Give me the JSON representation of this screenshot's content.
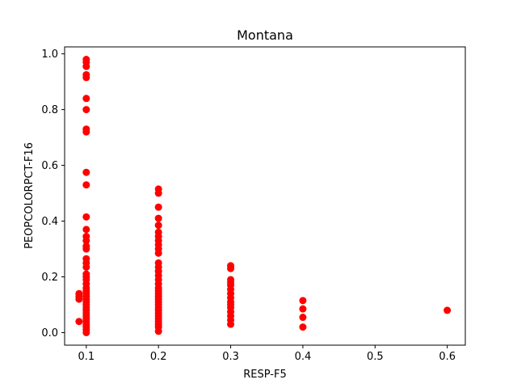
{
  "chart_data": {
    "type": "scatter",
    "title": "Montana",
    "xlabel": "RESP-F5",
    "ylabel": "PEOPCOLORPCT-F16",
    "xlim": [
      0.07,
      0.625
    ],
    "ylim": [
      -0.045,
      1.025
    ],
    "xticks": [
      0.1,
      0.2,
      0.3,
      0.4,
      0.5,
      0.6
    ],
    "xtick_labels": [
      "0.1",
      "0.2",
      "0.3",
      "0.4",
      "0.5",
      "0.6"
    ],
    "yticks": [
      0.0,
      0.2,
      0.4,
      0.6,
      0.8,
      1.0
    ],
    "ytick_labels": [
      "0.0",
      "0.2",
      "0.4",
      "0.6",
      "0.8",
      "1.0"
    ],
    "grid": false,
    "marker_color": "#ff0000",
    "points": [
      {
        "x": 0.09,
        "y": 0.04
      },
      {
        "x": 0.09,
        "y": 0.12
      },
      {
        "x": 0.09,
        "y": 0.13
      },
      {
        "x": 0.09,
        "y": 0.14
      },
      {
        "x": 0.1,
        "y": 0.98
      },
      {
        "x": 0.1,
        "y": 0.97
      },
      {
        "x": 0.1,
        "y": 0.955
      },
      {
        "x": 0.1,
        "y": 0.925
      },
      {
        "x": 0.1,
        "y": 0.915
      },
      {
        "x": 0.1,
        "y": 0.84
      },
      {
        "x": 0.1,
        "y": 0.8
      },
      {
        "x": 0.1,
        "y": 0.73
      },
      {
        "x": 0.1,
        "y": 0.72
      },
      {
        "x": 0.1,
        "y": 0.575
      },
      {
        "x": 0.1,
        "y": 0.53
      },
      {
        "x": 0.1,
        "y": 0.415
      },
      {
        "x": 0.1,
        "y": 0.37
      },
      {
        "x": 0.1,
        "y": 0.345
      },
      {
        "x": 0.1,
        "y": 0.33
      },
      {
        "x": 0.1,
        "y": 0.31
      },
      {
        "x": 0.1,
        "y": 0.3
      },
      {
        "x": 0.1,
        "y": 0.265
      },
      {
        "x": 0.1,
        "y": 0.25
      },
      {
        "x": 0.1,
        "y": 0.235
      },
      {
        "x": 0.1,
        "y": 0.21
      },
      {
        "x": 0.1,
        "y": 0.2
      },
      {
        "x": 0.1,
        "y": 0.19
      },
      {
        "x": 0.1,
        "y": 0.175
      },
      {
        "x": 0.1,
        "y": 0.16
      },
      {
        "x": 0.1,
        "y": 0.15
      },
      {
        "x": 0.1,
        "y": 0.14
      },
      {
        "x": 0.1,
        "y": 0.13
      },
      {
        "x": 0.1,
        "y": 0.12
      },
      {
        "x": 0.1,
        "y": 0.11
      },
      {
        "x": 0.1,
        "y": 0.1
      },
      {
        "x": 0.1,
        "y": 0.09
      },
      {
        "x": 0.1,
        "y": 0.08
      },
      {
        "x": 0.1,
        "y": 0.07
      },
      {
        "x": 0.1,
        "y": 0.06
      },
      {
        "x": 0.1,
        "y": 0.05
      },
      {
        "x": 0.1,
        "y": 0.04
      },
      {
        "x": 0.1,
        "y": 0.03
      },
      {
        "x": 0.1,
        "y": 0.02
      },
      {
        "x": 0.1,
        "y": 0.01
      },
      {
        "x": 0.1,
        "y": 0.0
      },
      {
        "x": 0.2,
        "y": 0.515
      },
      {
        "x": 0.2,
        "y": 0.5
      },
      {
        "x": 0.2,
        "y": 0.45
      },
      {
        "x": 0.2,
        "y": 0.41
      },
      {
        "x": 0.2,
        "y": 0.385
      },
      {
        "x": 0.2,
        "y": 0.36
      },
      {
        "x": 0.2,
        "y": 0.345
      },
      {
        "x": 0.2,
        "y": 0.33
      },
      {
        "x": 0.2,
        "y": 0.315
      },
      {
        "x": 0.2,
        "y": 0.3
      },
      {
        "x": 0.2,
        "y": 0.285
      },
      {
        "x": 0.2,
        "y": 0.25
      },
      {
        "x": 0.2,
        "y": 0.235
      },
      {
        "x": 0.2,
        "y": 0.22
      },
      {
        "x": 0.2,
        "y": 0.205
      },
      {
        "x": 0.2,
        "y": 0.19
      },
      {
        "x": 0.2,
        "y": 0.175
      },
      {
        "x": 0.2,
        "y": 0.16
      },
      {
        "x": 0.2,
        "y": 0.15
      },
      {
        "x": 0.2,
        "y": 0.14
      },
      {
        "x": 0.2,
        "y": 0.13
      },
      {
        "x": 0.2,
        "y": 0.12
      },
      {
        "x": 0.2,
        "y": 0.11
      },
      {
        "x": 0.2,
        "y": 0.1
      },
      {
        "x": 0.2,
        "y": 0.09
      },
      {
        "x": 0.2,
        "y": 0.08
      },
      {
        "x": 0.2,
        "y": 0.07
      },
      {
        "x": 0.2,
        "y": 0.06
      },
      {
        "x": 0.2,
        "y": 0.05
      },
      {
        "x": 0.2,
        "y": 0.04
      },
      {
        "x": 0.2,
        "y": 0.03
      },
      {
        "x": 0.2,
        "y": 0.02
      },
      {
        "x": 0.2,
        "y": 0.005
      },
      {
        "x": 0.3,
        "y": 0.24
      },
      {
        "x": 0.3,
        "y": 0.23
      },
      {
        "x": 0.3,
        "y": 0.19
      },
      {
        "x": 0.3,
        "y": 0.18
      },
      {
        "x": 0.3,
        "y": 0.17
      },
      {
        "x": 0.3,
        "y": 0.155
      },
      {
        "x": 0.3,
        "y": 0.14
      },
      {
        "x": 0.3,
        "y": 0.125
      },
      {
        "x": 0.3,
        "y": 0.11
      },
      {
        "x": 0.3,
        "y": 0.1
      },
      {
        "x": 0.3,
        "y": 0.09
      },
      {
        "x": 0.3,
        "y": 0.075
      },
      {
        "x": 0.3,
        "y": 0.06
      },
      {
        "x": 0.3,
        "y": 0.045
      },
      {
        "x": 0.3,
        "y": 0.03
      },
      {
        "x": 0.4,
        "y": 0.115
      },
      {
        "x": 0.4,
        "y": 0.085
      },
      {
        "x": 0.4,
        "y": 0.055
      },
      {
        "x": 0.4,
        "y": 0.02
      },
      {
        "x": 0.6,
        "y": 0.08
      }
    ]
  }
}
